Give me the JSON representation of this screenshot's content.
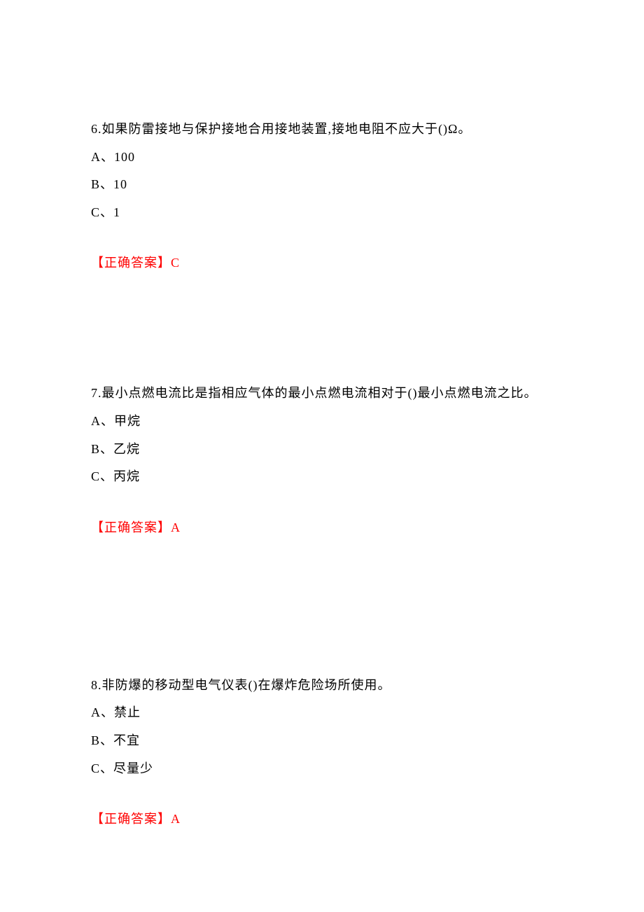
{
  "document": {
    "text_color": "#000000",
    "answer_color": "#ff0000",
    "background_color": "#ffffff",
    "font_family": "SimSun",
    "font_size": 18,
    "line_height": 2.2
  },
  "questions": [
    {
      "number": "6",
      "text": "6.如果防雷接地与保护接地合用接地装置,接地电阻不应大于()Ω。",
      "options": [
        "A、100",
        "B、10",
        "C、1"
      ],
      "answer_label": "【正确答案】",
      "answer_value": "C"
    },
    {
      "number": "7",
      "text": "7.最小点燃电流比是指相应气体的最小点燃电流相对于()最小点燃电流之比。",
      "options": [
        "A、甲烷",
        "B、乙烷",
        "C、丙烷"
      ],
      "answer_label": "【正确答案】",
      "answer_value": "A"
    },
    {
      "number": "8",
      "text": "8.非防爆的移动型电气仪表()在爆炸危险场所使用。",
      "options": [
        "A、禁止",
        "B、不宜",
        "C、尽量少"
      ],
      "answer_label": "【正确答案】",
      "answer_value": "A"
    }
  ]
}
